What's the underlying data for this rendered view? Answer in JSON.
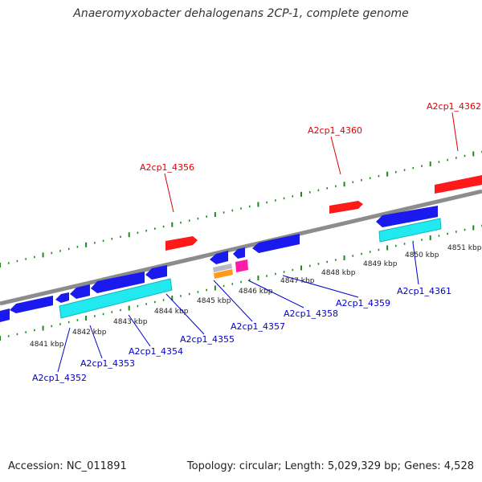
{
  "title": "Anaeromyxobacter dehalogenans 2CP-1, complete genome",
  "footer": {
    "accession": "Accession: NC_011891",
    "topology": "Topology: circular; Length: 5,029,329 bp; Genes: 4,528"
  },
  "colors": {
    "backbone": "#8c8c8c",
    "tick": "#1a8a1a",
    "label_top": "#e00000",
    "label_bottom": "#0000cc",
    "gene_red": "#ff1a1a",
    "gene_blue": "#1a1aee",
    "gene_cyan": "#22e8f0",
    "gene_pink": "#ff1aa8",
    "gene_orange": "#ff9a1a",
    "gene_gray": "#b8b8c8"
  },
  "scale_labels": [
    "4841 kbp",
    "4842 kbp",
    "4843 kbp",
    "4844 kbp",
    "4845 kbp",
    "4846 kbp",
    "4847 kbp",
    "4848 kbp",
    "4849 kbp",
    "4850 kbp",
    "4851 kbp"
  ],
  "gene_labels_top": [
    "A2cp1_4356",
    "A2cp1_4360",
    "A2cp1_4362"
  ],
  "gene_labels_bottom": [
    "A2cp1_4352",
    "A2cp1_4353",
    "A2cp1_4354",
    "A2cp1_4355",
    "A2cp1_4357",
    "A2cp1_4358",
    "A2cp1_4359",
    "A2cp1_4361"
  ]
}
